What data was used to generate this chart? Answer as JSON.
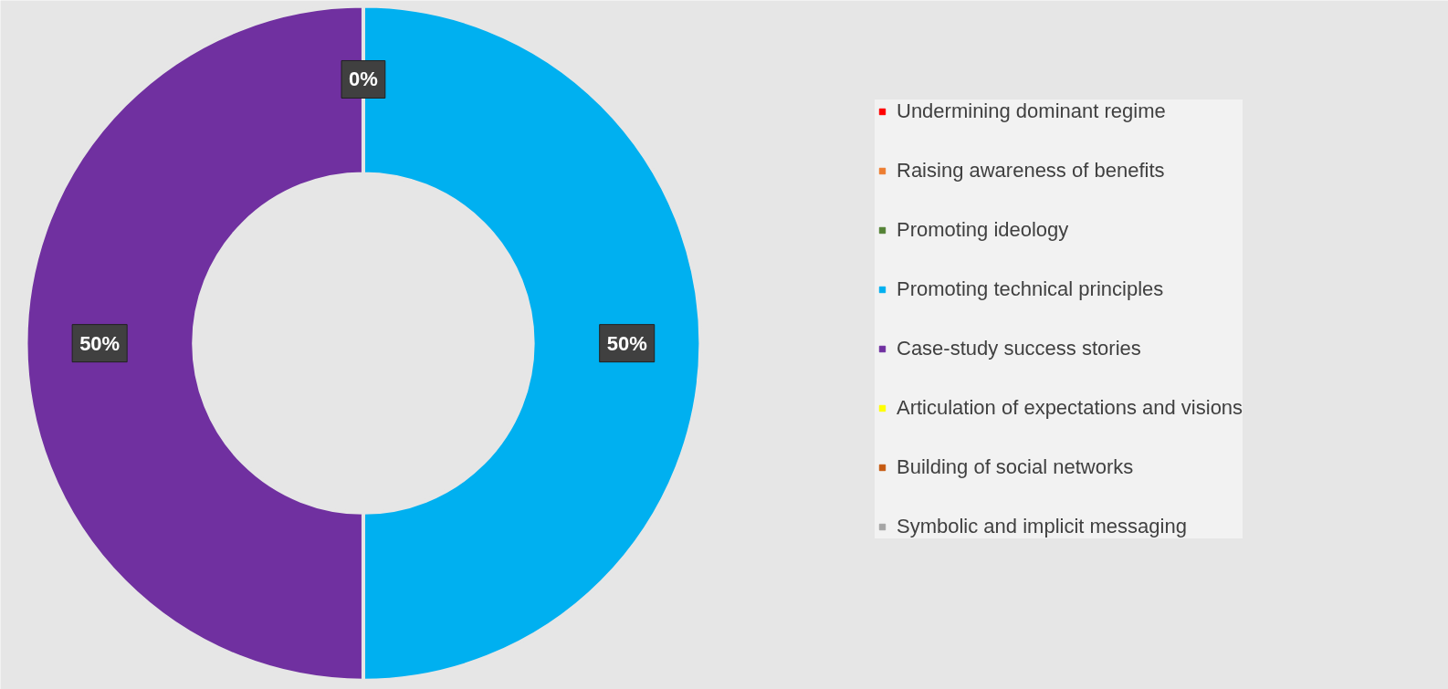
{
  "chart_data": {
    "type": "donut",
    "categories": [
      "Undermining dominant regime",
      "Raising awareness of benefits",
      "Promoting ideology",
      "Promoting technical principles",
      "Case-study success stories",
      "Articulation of expectations and visions",
      "Building of social networks",
      "Symbolic and implicit messaging"
    ],
    "values": [
      0,
      0,
      0,
      50,
      50,
      0,
      0,
      0
    ],
    "colors": [
      "#ff0000",
      "#ed7d31",
      "#548235",
      "#00b0f0",
      "#7030a0",
      "#ffff00",
      "#c55a11",
      "#a5a5a5"
    ],
    "value_labels": [
      "0%",
      null,
      null,
      "50%",
      "50%",
      null,
      null,
      null
    ],
    "legend": "right"
  }
}
